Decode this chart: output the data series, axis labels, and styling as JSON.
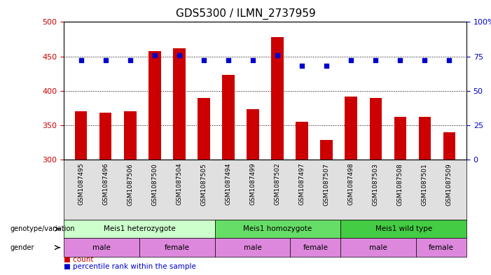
{
  "title": "GDS5300 / ILMN_2737959",
  "samples": [
    "GSM1087495",
    "GSM1087496",
    "GSM1087506",
    "GSM1087500",
    "GSM1087504",
    "GSM1087505",
    "GSM1087494",
    "GSM1087499",
    "GSM1087502",
    "GSM1087497",
    "GSM1087507",
    "GSM1087498",
    "GSM1087503",
    "GSM1087508",
    "GSM1087501",
    "GSM1087509"
  ],
  "counts": [
    370,
    368,
    370,
    458,
    462,
    390,
    423,
    373,
    478,
    355,
    328,
    392,
    390,
    362,
    362,
    340
  ],
  "percentiles": [
    72,
    72,
    72,
    76,
    76,
    72,
    72,
    72,
    76,
    68,
    68,
    72,
    72,
    72,
    72,
    72
  ],
  "ylim_left": [
    300,
    500
  ],
  "ylim_right": [
    0,
    100
  ],
  "left_ticks": [
    300,
    350,
    400,
    450,
    500
  ],
  "right_ticks": [
    0,
    25,
    50,
    75,
    100
  ],
  "bar_color": "#cc0000",
  "dot_color": "#0000cc",
  "background_color": "#ffffff",
  "genotype_groups": [
    {
      "label": "Meis1 heterozygote",
      "start": 0,
      "end": 5,
      "color": "#ccffcc"
    },
    {
      "label": "Meis1 homozygote",
      "start": 6,
      "end": 10,
      "color": "#66dd66"
    },
    {
      "label": "Meis1 wild type",
      "start": 11,
      "end": 15,
      "color": "#44cc44"
    }
  ],
  "gender_groups": [
    {
      "label": "male",
      "start": 0,
      "end": 2,
      "color": "#dd88dd"
    },
    {
      "label": "female",
      "start": 3,
      "end": 5,
      "color": "#dd88dd"
    },
    {
      "label": "male",
      "start": 6,
      "end": 8,
      "color": "#dd88dd"
    },
    {
      "label": "female",
      "start": 9,
      "end": 10,
      "color": "#dd88dd"
    },
    {
      "label": "male",
      "start": 11,
      "end": 13,
      "color": "#dd88dd"
    },
    {
      "label": "female",
      "start": 14,
      "end": 15,
      "color": "#dd88dd"
    }
  ],
  "legend_count_color": "#cc0000",
  "legend_percentile_color": "#0000cc",
  "xlabel_color": "#cc0000",
  "ylabel_right_color": "#0000cc"
}
